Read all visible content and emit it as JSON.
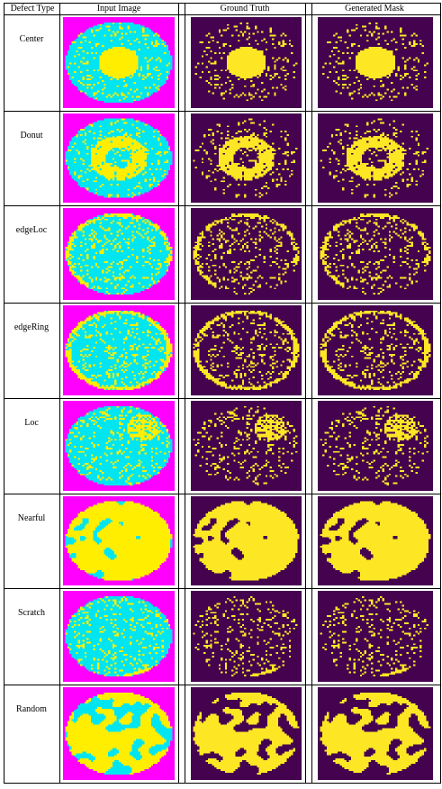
{
  "caption_fragment": "",
  "headers": {
    "defect_type": "Defect Type",
    "input_image": "Input Image",
    "ground_truth": "Ground Truth",
    "generated_mask": "Generated Mask"
  },
  "rows": [
    {
      "label": "Center"
    },
    {
      "label": "Donut"
    },
    {
      "label": "edgeLoc"
    },
    {
      "label": "edgeRing"
    },
    {
      "label": "Loc"
    },
    {
      "label": "Nearful"
    },
    {
      "label": "Scratch"
    },
    {
      "label": "Random"
    }
  ],
  "colors": {
    "input_background": "#ff00ff",
    "input_normal": "#00e5f0",
    "input_defect": "#ffee00",
    "mask_background": "#44024f",
    "mask_defect": "#fde725"
  }
}
